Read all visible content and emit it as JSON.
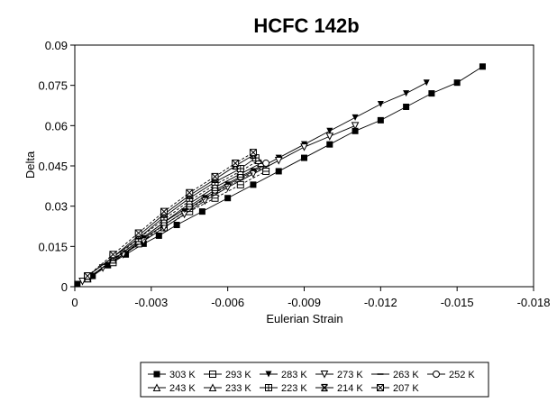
{
  "chart_data": {
    "type": "scatter",
    "title": "HCFC 142b",
    "xlabel": "Eulerian Strain",
    "ylabel": "Delta",
    "xlim": [
      0,
      -0.018
    ],
    "ylim": [
      0,
      0.09
    ],
    "x_ticks": [
      "0",
      "-0.003",
      "-0.006",
      "-0.009",
      "-0.012",
      "-0.015",
      "-0.018"
    ],
    "y_ticks": [
      "0",
      "0.015",
      "0.03",
      "0.045",
      "0.06",
      "0.075",
      "0.09"
    ],
    "x_tick_values": [
      0,
      -0.003,
      -0.006,
      -0.009,
      -0.012,
      -0.015,
      -0.018
    ],
    "y_tick_values": [
      0,
      0.015,
      0.03,
      0.045,
      0.06,
      0.075,
      0.09
    ],
    "grid": false,
    "legend_position": "bottom",
    "series": [
      {
        "name": "303 K",
        "marker": "square-filled",
        "x": [
          -0.0001,
          -0.0007,
          -0.0013,
          -0.002,
          -0.0027,
          -0.0033,
          -0.004,
          -0.005,
          -0.006,
          -0.007,
          -0.008,
          -0.009,
          -0.01,
          -0.011,
          -0.012,
          -0.013,
          -0.014,
          -0.015,
          -0.016
        ],
        "y": [
          0.001,
          0.004,
          0.008,
          0.012,
          0.016,
          0.019,
          0.023,
          0.028,
          0.033,
          0.038,
          0.043,
          0.048,
          0.053,
          0.058,
          0.062,
          0.067,
          0.072,
          0.076,
          0.082
        ]
      },
      {
        "name": "293 K",
        "marker": "square-cross",
        "x": [
          -0.0005,
          -0.0015,
          -0.0025,
          -0.0035,
          -0.0045,
          -0.0055,
          -0.0065,
          -0.0075
        ],
        "y": [
          0.003,
          0.009,
          0.016,
          0.022,
          0.028,
          0.033,
          0.038,
          0.043
        ]
      },
      {
        "name": "283 K",
        "marker": "triangle-down-filled",
        "x": [
          -0.0003,
          -0.0011,
          -0.0019,
          -0.0027,
          -0.0035,
          -0.0043,
          -0.0051,
          -0.006,
          -0.007,
          -0.008,
          -0.009,
          -0.01,
          -0.011,
          -0.012,
          -0.013,
          -0.0138
        ],
        "y": [
          0.002,
          0.007,
          0.012,
          0.018,
          0.023,
          0.028,
          0.033,
          0.038,
          0.043,
          0.048,
          0.053,
          0.058,
          0.063,
          0.068,
          0.072,
          0.076
        ]
      },
      {
        "name": "273 K",
        "marker": "triangle-down-open",
        "x": [
          -0.0003,
          -0.0011,
          -0.0019,
          -0.0027,
          -0.0035,
          -0.0043,
          -0.0051,
          -0.006,
          -0.007,
          -0.008,
          -0.009,
          -0.01,
          -0.011
        ],
        "y": [
          0.002,
          0.007,
          0.012,
          0.017,
          0.022,
          0.027,
          0.032,
          0.037,
          0.042,
          0.047,
          0.052,
          0.056,
          0.06
        ]
      },
      {
        "name": "263 K",
        "marker": "dash",
        "x": [
          -0.0005,
          -0.0015,
          -0.0025,
          -0.0035,
          -0.0045,
          -0.0055,
          -0.0065,
          -0.0075
        ],
        "y": [
          0.003,
          0.01,
          0.016,
          0.023,
          0.029,
          0.035,
          0.04,
          0.045
        ]
      },
      {
        "name": "252 K",
        "marker": "circle-open",
        "x": [
          -0.0005,
          -0.0015,
          -0.0025,
          -0.0035,
          -0.0045,
          -0.0055,
          -0.0065,
          -0.0075
        ],
        "y": [
          0.003,
          0.01,
          0.017,
          0.024,
          0.03,
          0.036,
          0.041,
          0.046
        ]
      },
      {
        "name": "243 K",
        "marker": "triangle-up-open",
        "x": [
          -0.0005,
          -0.0015,
          -0.0025,
          -0.0035,
          -0.0045,
          -0.0055,
          -0.0065,
          -0.0073
        ],
        "y": [
          0.003,
          0.01,
          0.017,
          0.024,
          0.031,
          0.037,
          0.042,
          0.046
        ]
      },
      {
        "name": "233 K",
        "marker": "triangle-up-open",
        "x": [
          -0.0005,
          -0.0015,
          -0.0025,
          -0.0035,
          -0.0045,
          -0.0055,
          -0.0065,
          -0.0072
        ],
        "y": [
          0.003,
          0.01,
          0.018,
          0.025,
          0.032,
          0.038,
          0.043,
          0.047
        ]
      },
      {
        "name": "223 K",
        "marker": "square-plus",
        "x": [
          -0.0005,
          -0.0015,
          -0.0025,
          -0.0035,
          -0.0045,
          -0.0055,
          -0.0065,
          -0.0071
        ],
        "y": [
          0.004,
          0.011,
          0.018,
          0.026,
          0.033,
          0.039,
          0.044,
          0.048
        ]
      },
      {
        "name": "214 K",
        "marker": "x-bar",
        "x": [
          -0.0005,
          -0.0015,
          -0.0025,
          -0.0035,
          -0.0045,
          -0.0055,
          -0.0063,
          -0.007
        ],
        "y": [
          0.004,
          0.011,
          0.019,
          0.027,
          0.034,
          0.04,
          0.045,
          0.049
        ]
      },
      {
        "name": "207 K",
        "marker": "square-x",
        "x": [
          -0.0005,
          -0.0015,
          -0.0025,
          -0.0035,
          -0.0045,
          -0.0055,
          -0.0063,
          -0.007
        ],
        "y": [
          0.004,
          0.012,
          0.02,
          0.028,
          0.035,
          0.041,
          0.046,
          0.05
        ]
      }
    ]
  }
}
